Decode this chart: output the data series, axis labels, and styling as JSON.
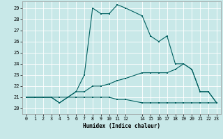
{
  "xlabel": "Humidex (Indice chaleur)",
  "bg_color": "#c8e8e8",
  "grid_color": "#ffffff",
  "line_color": "#006060",
  "xlim": [
    -0.5,
    23.5
  ],
  "ylim": [
    19.5,
    29.6
  ],
  "xticks": [
    0,
    1,
    2,
    3,
    4,
    5,
    6,
    7,
    8,
    9,
    10,
    11,
    12,
    14,
    15,
    16,
    17,
    18,
    19,
    20,
    21,
    22,
    23
  ],
  "yticks": [
    20,
    21,
    22,
    23,
    24,
    25,
    26,
    27,
    28,
    29
  ],
  "line1_x": [
    0,
    1,
    2,
    3,
    4,
    5,
    6,
    7,
    8,
    9,
    10,
    11,
    12,
    14,
    15,
    16,
    17,
    18,
    19,
    20,
    21,
    22,
    23
  ],
  "line1_y": [
    21,
    21,
    21,
    21,
    20.5,
    21,
    21.5,
    23,
    29,
    28.5,
    28.5,
    29.3,
    29,
    28.3,
    26.5,
    26,
    26.5,
    24,
    24,
    23.5,
    21.5,
    21.5,
    20.5
  ],
  "line2_x": [
    0,
    1,
    2,
    3,
    4,
    5,
    6,
    7,
    8,
    9,
    10,
    11,
    12,
    14,
    15,
    16,
    17,
    18,
    19,
    20,
    21,
    22,
    23
  ],
  "line2_y": [
    21,
    21,
    21,
    21,
    20.5,
    21,
    21,
    21,
    21,
    21,
    21,
    20.8,
    20.8,
    20.5,
    20.5,
    20.5,
    20.5,
    20.5,
    20.5,
    20.5,
    20.5,
    20.5,
    20.5
  ],
  "line3_x": [
    0,
    1,
    2,
    3,
    4,
    5,
    6,
    7,
    8,
    9,
    10,
    11,
    12,
    14,
    15,
    16,
    17,
    18,
    19,
    20,
    21,
    22,
    23
  ],
  "line3_y": [
    21,
    21,
    21,
    21,
    21,
    21,
    21.5,
    21.5,
    22,
    22,
    22.2,
    22.5,
    22.7,
    23.2,
    23.2,
    23.2,
    23.2,
    23.5,
    24,
    23.5,
    21.5,
    21.5,
    20.5
  ]
}
